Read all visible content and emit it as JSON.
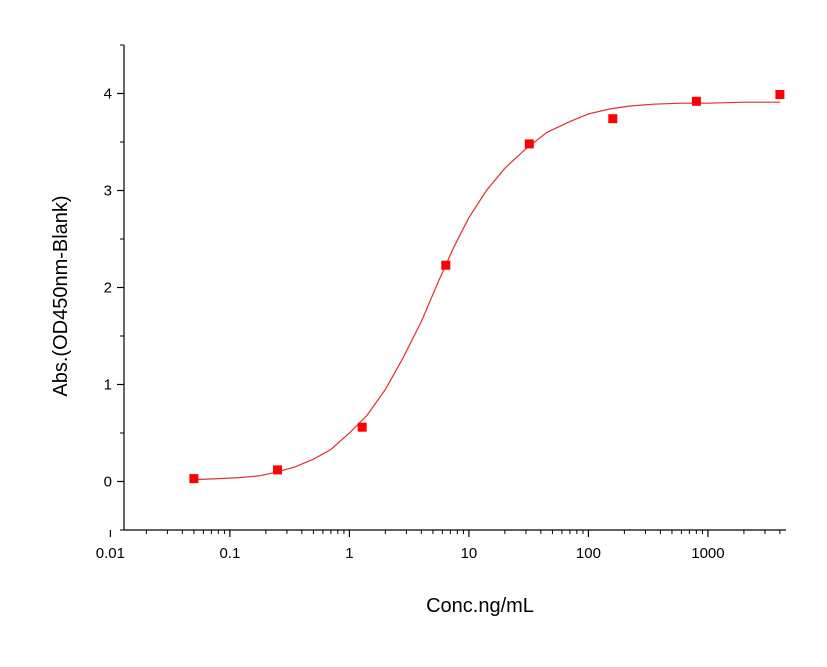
{
  "chart_data": {
    "type": "scatter",
    "title": "",
    "xlabel": "Conc.ng/mL",
    "ylabel": "Abs.(OD450nm-Blank)",
    "xscale": "log",
    "xlim": [
      0.013,
      4500
    ],
    "ylim": [
      -0.5,
      4.5
    ],
    "x_ticks": [
      0.01,
      0.1,
      1,
      10,
      100,
      1000
    ],
    "x_tick_labels": [
      "0.01",
      "0.1",
      "1",
      "10",
      "100",
      "1000"
    ],
    "y_ticks": [
      0,
      1,
      2,
      3,
      4
    ],
    "y_tick_labels": [
      "0",
      "1",
      "2",
      "3",
      "4"
    ],
    "grid": false,
    "legend": "none",
    "series": [
      {
        "kind": "points",
        "marker": "square",
        "color": "#ff0000",
        "x": [
          0.05,
          0.25,
          1.28,
          6.4,
          32,
          160,
          800,
          4000
        ],
        "y": [
          0.03,
          0.12,
          0.56,
          2.23,
          3.48,
          3.74,
          3.92,
          3.99
        ]
      },
      {
        "kind": "fit-curve",
        "color": "#e03030",
        "x": [
          0.05,
          0.08,
          0.12,
          0.18,
          0.25,
          0.35,
          0.5,
          0.7,
          1.0,
          1.4,
          2.0,
          2.8,
          4.0,
          5.5,
          7.5,
          10,
          14,
          20,
          30,
          45,
          70,
          100,
          150,
          220,
          350,
          600,
          1000,
          2000,
          4000
        ],
        "y": [
          0.02,
          0.03,
          0.04,
          0.06,
          0.1,
          0.15,
          0.23,
          0.33,
          0.5,
          0.68,
          0.95,
          1.27,
          1.65,
          2.05,
          2.42,
          2.72,
          3.0,
          3.23,
          3.43,
          3.6,
          3.71,
          3.79,
          3.84,
          3.87,
          3.89,
          3.9,
          3.9,
          3.91,
          3.91
        ]
      }
    ]
  }
}
